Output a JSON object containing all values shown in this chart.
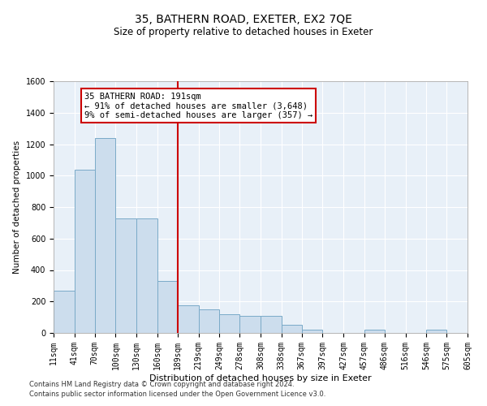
{
  "title1": "35, BATHERN ROAD, EXETER, EX2 7QE",
  "title2": "Size of property relative to detached houses in Exeter",
  "xlabel": "Distribution of detached houses by size in Exeter",
  "ylabel": "Number of detached properties",
  "bin_edges": [
    11,
    41,
    70,
    100,
    130,
    160,
    189,
    219,
    249,
    278,
    308,
    338,
    367,
    397,
    427,
    457,
    486,
    516,
    546,
    575,
    605
  ],
  "bar_heights": [
    270,
    1040,
    1240,
    730,
    730,
    330,
    175,
    150,
    120,
    110,
    110,
    50,
    20,
    0,
    0,
    20,
    0,
    0,
    20,
    0
  ],
  "bar_color": "#ccdded",
  "bar_edge_color": "#7aaac8",
  "vline_x": 189,
  "vline_color": "#cc0000",
  "annotation_text": "35 BATHERN ROAD: 191sqm\n← 91% of detached houses are smaller (3,648)\n9% of semi-detached houses are larger (357) →",
  "annotation_box_color": "#ffffff",
  "annotation_box_edge": "#cc0000",
  "ylim": [
    0,
    1600
  ],
  "yticks": [
    0,
    200,
    400,
    600,
    800,
    1000,
    1200,
    1400,
    1600
  ],
  "footer_line1": "Contains HM Land Registry data © Crown copyright and database right 2024.",
  "footer_line2": "Contains public sector information licensed under the Open Government Licence v3.0.",
  "plot_bg_color": "#e8f0f8",
  "grid_color": "#ffffff",
  "title1_fontsize": 10,
  "title2_fontsize": 8.5,
  "xlabel_fontsize": 8,
  "ylabel_fontsize": 7.5,
  "tick_fontsize": 7,
  "footer_fontsize": 6,
  "annot_fontsize": 7.5
}
